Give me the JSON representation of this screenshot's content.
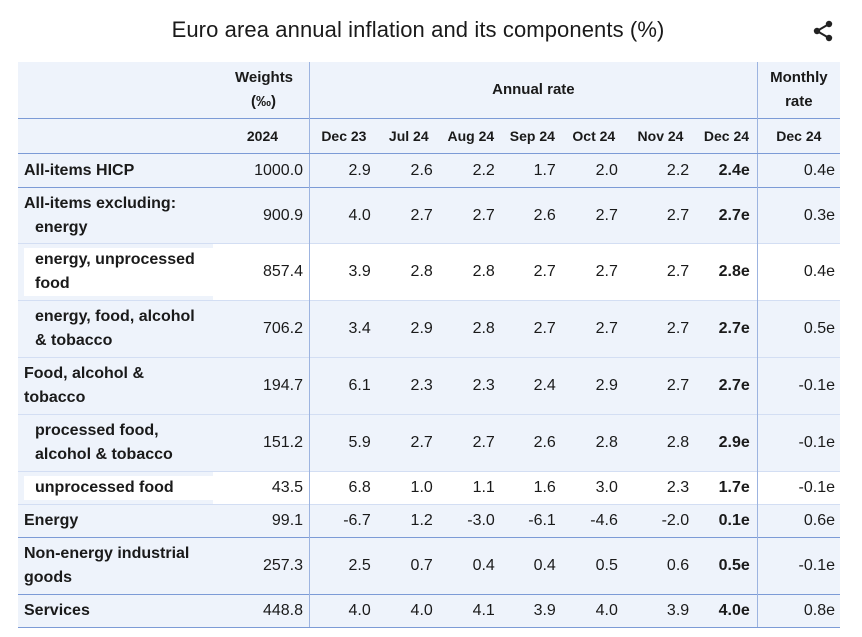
{
  "title": "Euro area annual inflation and its components (%)",
  "icons": {
    "share": "share-icon"
  },
  "colors": {
    "header_bg": "#eef3fb",
    "rule": "#7c9bd6"
  },
  "header": {
    "weights_label_1": "Weights",
    "weights_label_2": "(‰)",
    "annual_rate": "Annual rate",
    "monthly_rate_1": "Monthly",
    "monthly_rate_2": "rate",
    "columns": [
      "2024",
      "Dec 23",
      "Jul 24",
      "Aug 24",
      "Sep 24",
      "Oct 24",
      "Nov 24",
      "Dec 24",
      "Dec 24"
    ]
  },
  "rows": [
    {
      "label": "All-items HICP",
      "values": [
        "1000.0",
        "2.9",
        "2.6",
        "2.2",
        "1.7",
        "2.0",
        "2.2",
        "2.4e",
        "0.4e"
      ]
    },
    {
      "label_1": "All-items excluding:",
      "label_2": "energy",
      "values": [
        "900.9",
        "4.0",
        "2.7",
        "2.7",
        "2.6",
        "2.7",
        "2.7",
        "2.7e",
        "0.3e"
      ]
    },
    {
      "label_1": "energy, unprocessed",
      "label_2": "food",
      "values": [
        "857.4",
        "3.9",
        "2.8",
        "2.8",
        "2.7",
        "2.7",
        "2.7",
        "2.8e",
        "0.4e"
      ]
    },
    {
      "label_1": "energy, food, alcohol",
      "label_2": "& tobacco",
      "values": [
        "706.2",
        "3.4",
        "2.9",
        "2.8",
        "2.7",
        "2.7",
        "2.7",
        "2.7e",
        "0.5e"
      ]
    },
    {
      "label_1": "Food, alcohol &",
      "label_2": "tobacco",
      "values": [
        "194.7",
        "6.1",
        "2.3",
        "2.3",
        "2.4",
        "2.9",
        "2.7",
        "2.7e",
        "-0.1e"
      ]
    },
    {
      "label_1": "processed food,",
      "label_2": "alcohol & tobacco",
      "values": [
        "151.2",
        "5.9",
        "2.7",
        "2.7",
        "2.6",
        "2.8",
        "2.8",
        "2.9e",
        "-0.1e"
      ]
    },
    {
      "label": "unprocessed food",
      "values": [
        "43.5",
        "6.8",
        "1.0",
        "1.1",
        "1.6",
        "3.0",
        "2.3",
        "1.7e",
        "-0.1e"
      ]
    },
    {
      "label": "Energy",
      "values": [
        "99.1",
        "-6.7",
        "1.2",
        "-3.0",
        "-6.1",
        "-4.6",
        "-2.0",
        "0.1e",
        "0.6e"
      ]
    },
    {
      "label_1": "Non-energy industrial",
      "label_2": "goods",
      "values": [
        "257.3",
        "2.5",
        "0.7",
        "0.4",
        "0.4",
        "0.5",
        "0.6",
        "0.5e",
        "-0.1e"
      ]
    },
    {
      "label": "Services",
      "values": [
        "448.8",
        "4.0",
        "4.0",
        "4.1",
        "3.9",
        "4.0",
        "3.9",
        "4.0e",
        "0.8e"
      ]
    }
  ]
}
